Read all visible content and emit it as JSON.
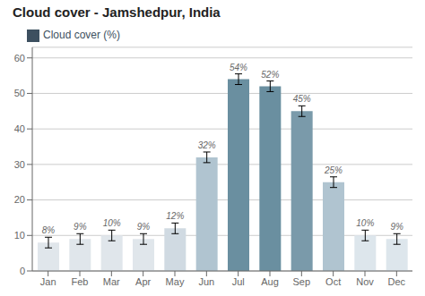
{
  "chart_data": {
    "type": "bar",
    "title": "Cloud cover - Jamshedpur, India",
    "categories": [
      "Jan",
      "Feb",
      "Mar",
      "Apr",
      "May",
      "Jun",
      "Jul",
      "Aug",
      "Sep",
      "Oct",
      "Nov",
      "Dec"
    ],
    "series": [
      {
        "name": "Cloud cover (%)",
        "color": "#3d5060",
        "colors": [
          "#e0e6eb",
          "#e0e6eb",
          "#e0e6eb",
          "#e0e6eb",
          "#d0dae2",
          "#b0c4d0",
          "#6a8fa0",
          "#6a8fa0",
          "#7a9aaa",
          "#b0c4d0",
          "#dde6ec",
          "#dde6ec"
        ],
        "values": [
          8,
          9,
          10,
          9,
          12,
          32,
          54,
          52,
          45,
          25,
          10,
          9
        ],
        "error": [
          1.5,
          1.5,
          1.5,
          1.5,
          1.5,
          1.5,
          1.5,
          1.5,
          1.5,
          1.5,
          1.5,
          1.5
        ],
        "value_labels": [
          "8%",
          "9%",
          "10%",
          "9%",
          "12%",
          "32%",
          "54%",
          "52%",
          "45%",
          "25%",
          "10%",
          "9%"
        ]
      }
    ],
    "data_labels": true,
    "ylim": [
      0,
      63
    ],
    "yticks": [
      0,
      10,
      20,
      30,
      40,
      50,
      60
    ],
    "grid": true,
    "legend": "upper left"
  }
}
